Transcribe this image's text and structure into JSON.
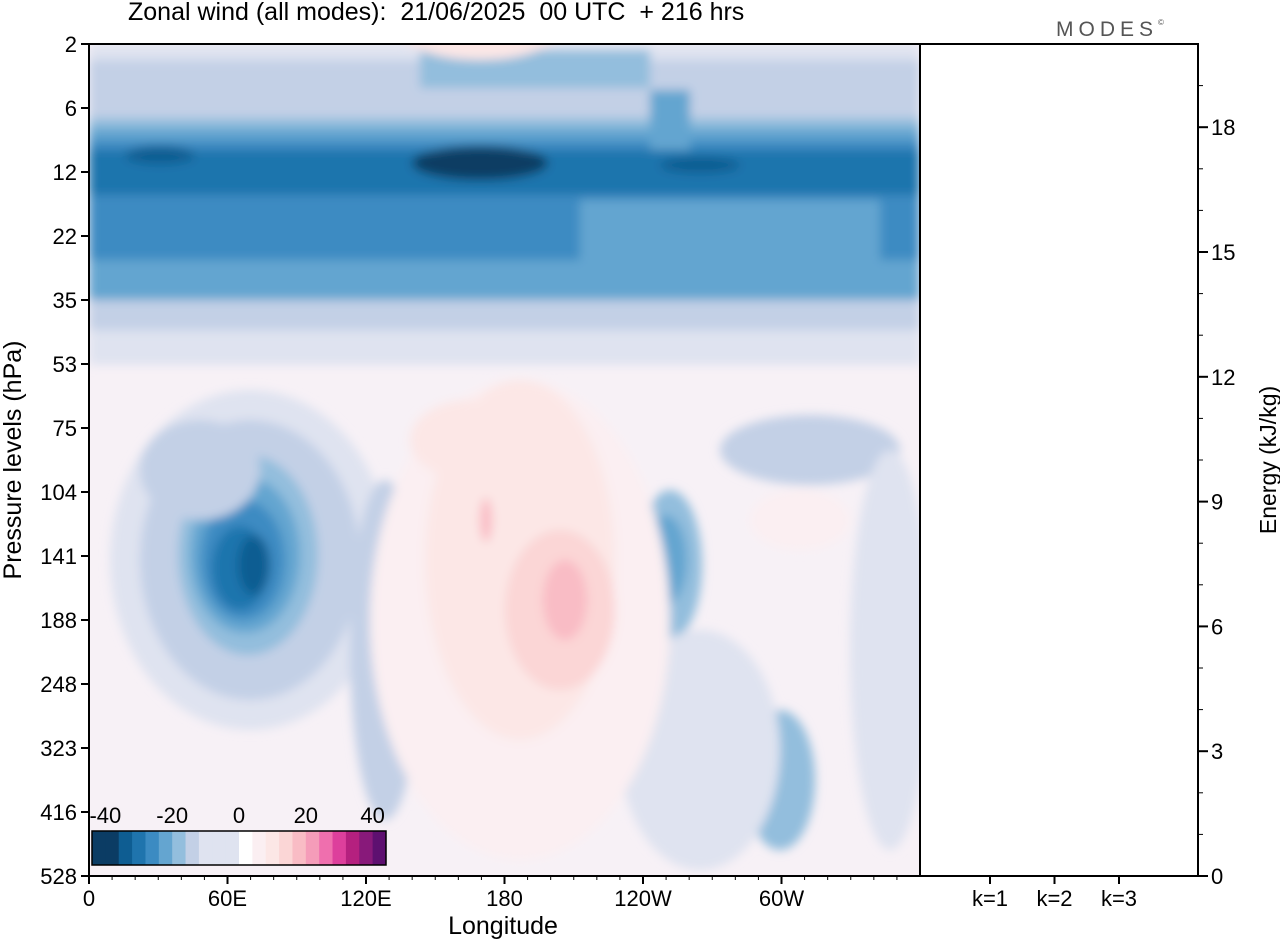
{
  "title": "Zonal wind (all modes):  21/06/2025  00 UTC  + 216 hrs",
  "brand": "MODES",
  "brand_mark": "©",
  "colors": {
    "neg": [
      "#0b3c64",
      "#0e5d92",
      "#1f74ad",
      "#3c8bc2",
      "#64a5d0",
      "#93bedd",
      "#c3d0e6",
      "#dfe3f0"
    ],
    "pos": [
      "#fbeff2",
      "#fce7e6",
      "#fbd6d6",
      "#f9bcc5",
      "#f59cb9",
      "#ef6fae",
      "#dd3f9c",
      "#b5207f",
      "#88197a",
      "#5e1070"
    ],
    "zero": "#f7f1f6"
  },
  "chart_data": [
    {
      "type": "heatmap",
      "title": "Zonal wind (all modes):  21/06/2025  00 UTC  + 216 hrs",
      "xlabel": "Longitude",
      "ylabel": "Pressure levels (hPa)",
      "x_ticks": [
        "0",
        "60E",
        "120E",
        "180",
        "120W",
        "60W"
      ],
      "x_tick_values": [
        0,
        60,
        120,
        180,
        240,
        300
      ],
      "xlim": [
        0,
        360
      ],
      "y_ticks": [
        "2",
        "6",
        "12",
        "22",
        "35",
        "53",
        "75",
        "104",
        "141",
        "188",
        "248",
        "323",
        "416",
        "528"
      ],
      "colorbar": {
        "ticks": [
          "-40",
          "-20",
          "0",
          "20",
          "40"
        ],
        "range": [
          -44,
          44
        ],
        "step": 4
      },
      "features": [
        {
          "type": "band",
          "pressure": "6-35 hPa",
          "value": -30,
          "note": "strong easterly jet, core near 12 hPa"
        },
        {
          "type": "core",
          "longitude": 180,
          "pressure": "12 hPa",
          "value": -42
        },
        {
          "type": "core",
          "longitude": 70,
          "pressure": "141 hPa",
          "value": -30
        },
        {
          "type": "core",
          "longitude": 200,
          "pressure": "188 hPa",
          "value": 12
        },
        {
          "type": "core",
          "longitude": 248,
          "pressure": "141 hPa",
          "value": -12
        },
        {
          "type": "core",
          "longitude": 300,
          "pressure": "416 hPa",
          "value": -12
        }
      ]
    },
    {
      "type": "bar",
      "categories": [
        "k=1",
        "k=2",
        "k=3"
      ],
      "values": [
        0.02,
        0.01,
        0.01
      ],
      "ylabel": "Energy (kJ/kg)",
      "y_ticks": [
        "0",
        "3",
        "6",
        "9",
        "12",
        "15",
        "18"
      ],
      "ylim": [
        0,
        20
      ]
    }
  ]
}
